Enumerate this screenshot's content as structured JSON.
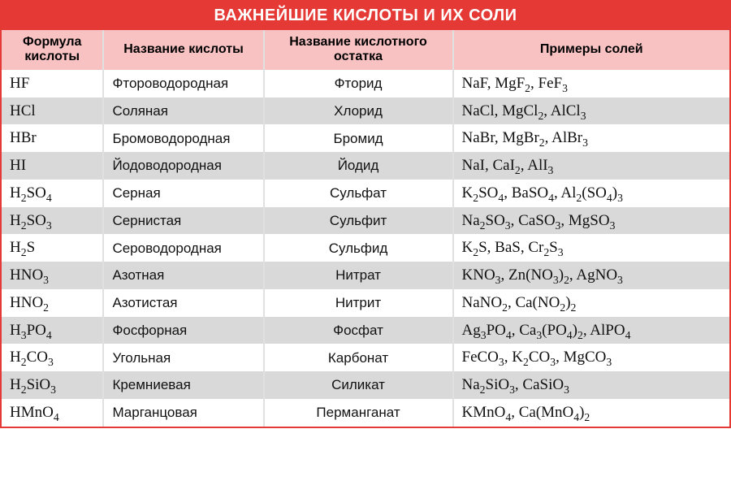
{
  "title": "ВАЖНЕЙШИЕ КИСЛОТЫ И ИХ СОЛИ",
  "chem_table": {
    "type": "table",
    "background_color": "#ffffff",
    "title_bg": "#e53935",
    "title_color": "#ffffff",
    "header_bg": "#f9c2c2",
    "row_alt_bg": "#d9d9d9",
    "border_color": "#e53935",
    "cell_border_color": "#e0e0e0",
    "title_fontsize": 20,
    "header_fontsize": 16,
    "body_fontsize": 17,
    "col_widths_pct": [
      14,
      22,
      26,
      38
    ],
    "col_align": [
      "left",
      "left",
      "center",
      "left"
    ],
    "columns": [
      "Формула кислоты",
      "Название кислоты",
      "Название кислотного остатка",
      "Примеры солей"
    ],
    "rows": [
      {
        "formula": "HF",
        "name": "Фтороводородная",
        "residue": "Фторид",
        "examples": "NaF, MgF₂, FeF₃"
      },
      {
        "formula": "HCl",
        "name": "Соляная",
        "residue": "Хлорид",
        "examples": "NaCl, MgCl₂, AlCl₃"
      },
      {
        "formula": "HBr",
        "name": "Бромоводородная",
        "residue": "Бромид",
        "examples": "NaBr, MgBr₂, AlBr₃"
      },
      {
        "formula": "HI",
        "name": "Йодоводородная",
        "residue": "Йодид",
        "examples": "NaI, CaI₂, AlI₃"
      },
      {
        "formula": "H₂SO₄",
        "name": "Серная",
        "residue": "Сульфат",
        "examples": "K₂SO₄, BaSO₄, Al₂(SO₄)₃"
      },
      {
        "formula": "H₂SO₃",
        "name": "Сернистая",
        "residue": "Сульфит",
        "examples": "Na₂SO₃, CaSO₃, MgSO₃"
      },
      {
        "formula": "H₂S",
        "name": "Сероводородная",
        "residue": "Сульфид",
        "examples": "K₂S, BaS, Cr₂S₃"
      },
      {
        "formula": "HNO₃",
        "name": "Азотная",
        "residue": "Нитрат",
        "examples": "KNO₃, Zn(NO₃)₂, AgNO₃"
      },
      {
        "formula": "HNO₂",
        "name": "Азотистая",
        "residue": "Нитрит",
        "examples": "NaNO₂, Ca(NO₂)₂"
      },
      {
        "formula": "H₃PO₄",
        "name": "Фосфорная",
        "residue": "Фосфат",
        "examples": "Ag₃PO₄, Ca₃(PO₄)₂, AlPO₄"
      },
      {
        "formula": "H₂CO₃",
        "name": "Угольная",
        "residue": "Карбонат",
        "examples": "FeCO₃, K₂CO₃, MgCO₃"
      },
      {
        "formula": "H₂SiO₃",
        "name": "Кремниевая",
        "residue": "Силикат",
        "examples": "Na₂SiO₃, CaSiO₃"
      },
      {
        "formula": "HMnO₄",
        "name": "Марганцовая",
        "residue": "Перманганат",
        "examples": "KMnO₄, Ca(MnO₄)₂"
      }
    ]
  }
}
